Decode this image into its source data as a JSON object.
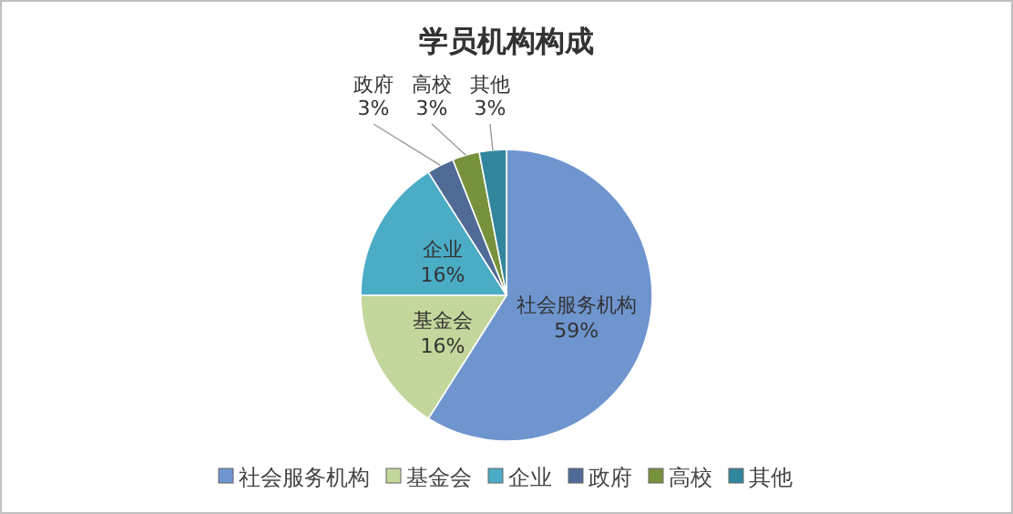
{
  "chart_data": {
    "type": "pie",
    "title": "学员机构构成",
    "categories": [
      "社会服务机构",
      "基金会",
      "企业",
      "政府",
      "高校",
      "其他"
    ],
    "values": [
      59,
      16,
      16,
      3,
      3,
      3
    ],
    "value_labels": [
      "59%",
      "16%",
      "16%",
      "3%",
      "3%",
      "3%"
    ],
    "colors": [
      "#6f95cf",
      "#c3d69b",
      "#4bacc6",
      "#4f6b95",
      "#77923c",
      "#31859c"
    ],
    "data_labels": true,
    "legend": "bottom"
  }
}
